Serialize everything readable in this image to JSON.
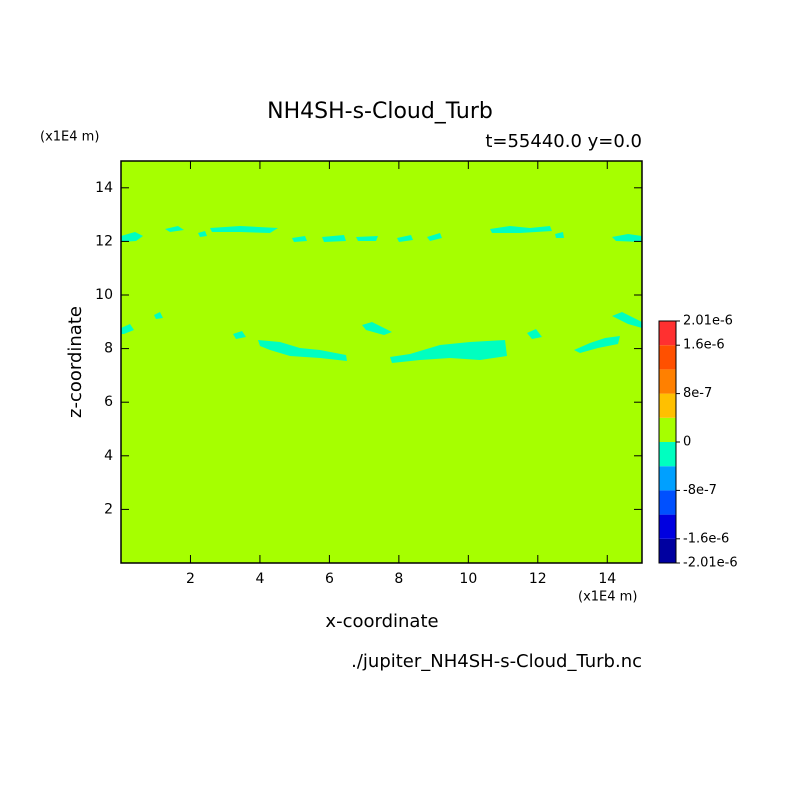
{
  "chart_data": {
    "type": "contour",
    "title": "NH4SH-s-Cloud_Turb",
    "subtitle": "t=55440.0 y=0.0",
    "y_unit": "(x1E4 m)",
    "x_unit": "(x1E4 m)",
    "xlabel": "x-coordinate",
    "ylabel": "z-coordinate",
    "source": "./jupiter_NH4SH-s-Cloud_Turb.nc",
    "xlim": [
      0,
      15
    ],
    "ylim": [
      0,
      15
    ],
    "xticks": [
      2,
      4,
      6,
      8,
      10,
      12,
      14
    ],
    "yticks": [
      2,
      4,
      6,
      8,
      10,
      12,
      14
    ],
    "background_color": "#a6ff00",
    "colorbar": {
      "levels": [
        -2.01e-06,
        -1.6e-06,
        -1.2e-06,
        -8e-07,
        -4e-07,
        0,
        4e-07,
        8e-07,
        1.2e-06,
        1.6e-06,
        2.01e-06
      ],
      "colors": [
        "#0000a0",
        "#0000e0",
        "#0050ff",
        "#00a0ff",
        "#00ffc0",
        "#a6ff00",
        "#ffc000",
        "#ff8000",
        "#ff5000",
        "#ff3030"
      ],
      "ticks": [
        {
          "value": -2.01e-06,
          "label": "-2.01e-6"
        },
        {
          "value": -1.6e-06,
          "label": "-1.6e-6"
        },
        {
          "value": -8e-07,
          "label": "-8e-7"
        },
        0,
        {
          "value": 8e-07,
          "label": "8e-7"
        },
        {
          "value": 1.6e-06,
          "label": "1.6e-6"
        },
        {
          "value": 2.01e-06,
          "label": "2.01e-6"
        }
      ]
    }
  }
}
